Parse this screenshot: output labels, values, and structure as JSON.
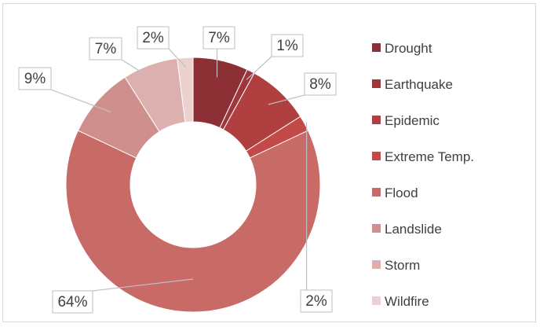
{
  "chart_data": {
    "type": "pie",
    "style": "doughnut",
    "title": "",
    "legend_position": "right",
    "categories": [
      "Drought",
      "Earthquake",
      "Epidemic",
      "Extreme Temp.",
      "Flood",
      "Landslide",
      "Storm",
      "Wildfire"
    ],
    "values": [
      7,
      1,
      8,
      2,
      64,
      9,
      7,
      2
    ],
    "data_labels": [
      "7%",
      "1%",
      "8%",
      "2%",
      "64%",
      "9%",
      "7%",
      "2%"
    ],
    "colors": [
      "#8c3035",
      "#9e363b",
      "#b0403f",
      "#c34a48",
      "#c86a66",
      "#cf8f8c",
      "#dbb0ae",
      "#ecd1cf"
    ]
  }
}
